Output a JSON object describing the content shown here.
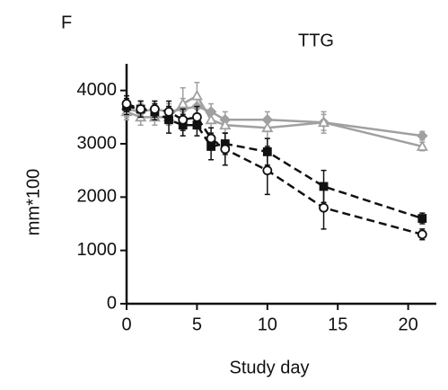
{
  "chart_data": {
    "type": "line",
    "panel_label": "F",
    "title": "TTG",
    "x_label": "Study day",
    "y_label": "mm*100",
    "x": [
      0,
      1,
      2,
      3,
      4,
      5,
      6,
      7,
      10,
      14,
      21
    ],
    "xlim": [
      0,
      22
    ],
    "xticks": [
      0,
      5,
      10,
      15,
      20
    ],
    "ylim": [
      0,
      4500
    ],
    "yticks": [
      0,
      1000,
      2000,
      3000,
      4000
    ],
    "series": [
      {
        "color": "#a0a0a0",
        "marker": "diamond",
        "dashed": false,
        "values": [
          3650,
          3600,
          3650,
          3600,
          3650,
          3700,
          3600,
          3450,
          3450,
          3400,
          3150
        ],
        "errors": [
          150,
          150,
          150,
          150,
          200,
          200,
          150,
          150,
          150,
          150,
          80
        ]
      },
      {
        "color": "#a0a0a0",
        "marker": "triangle-open",
        "dashed": false,
        "values": [
          3600,
          3500,
          3500,
          3500,
          3750,
          3900,
          3450,
          3350,
          3300,
          3400,
          2950
        ],
        "errors": [
          150,
          150,
          150,
          150,
          300,
          250,
          150,
          150,
          200,
          200,
          80
        ]
      },
      {
        "color": "#111111",
        "marker": "square",
        "dashed": true,
        "values": [
          3700,
          3650,
          3600,
          3450,
          3350,
          3350,
          2950,
          3000,
          2850,
          2200,
          1600
        ],
        "errors": [
          150,
          150,
          150,
          250,
          200,
          200,
          250,
          200,
          250,
          300,
          100
        ]
      },
      {
        "color": "#111111",
        "marker": "circle-open",
        "dashed": true,
        "values": [
          3750,
          3650,
          3650,
          3600,
          3450,
          3500,
          3100,
          2900,
          2500,
          1800,
          1300
        ],
        "errors": [
          150,
          150,
          150,
          200,
          200,
          200,
          200,
          300,
          450,
          400,
          100
        ]
      }
    ]
  }
}
